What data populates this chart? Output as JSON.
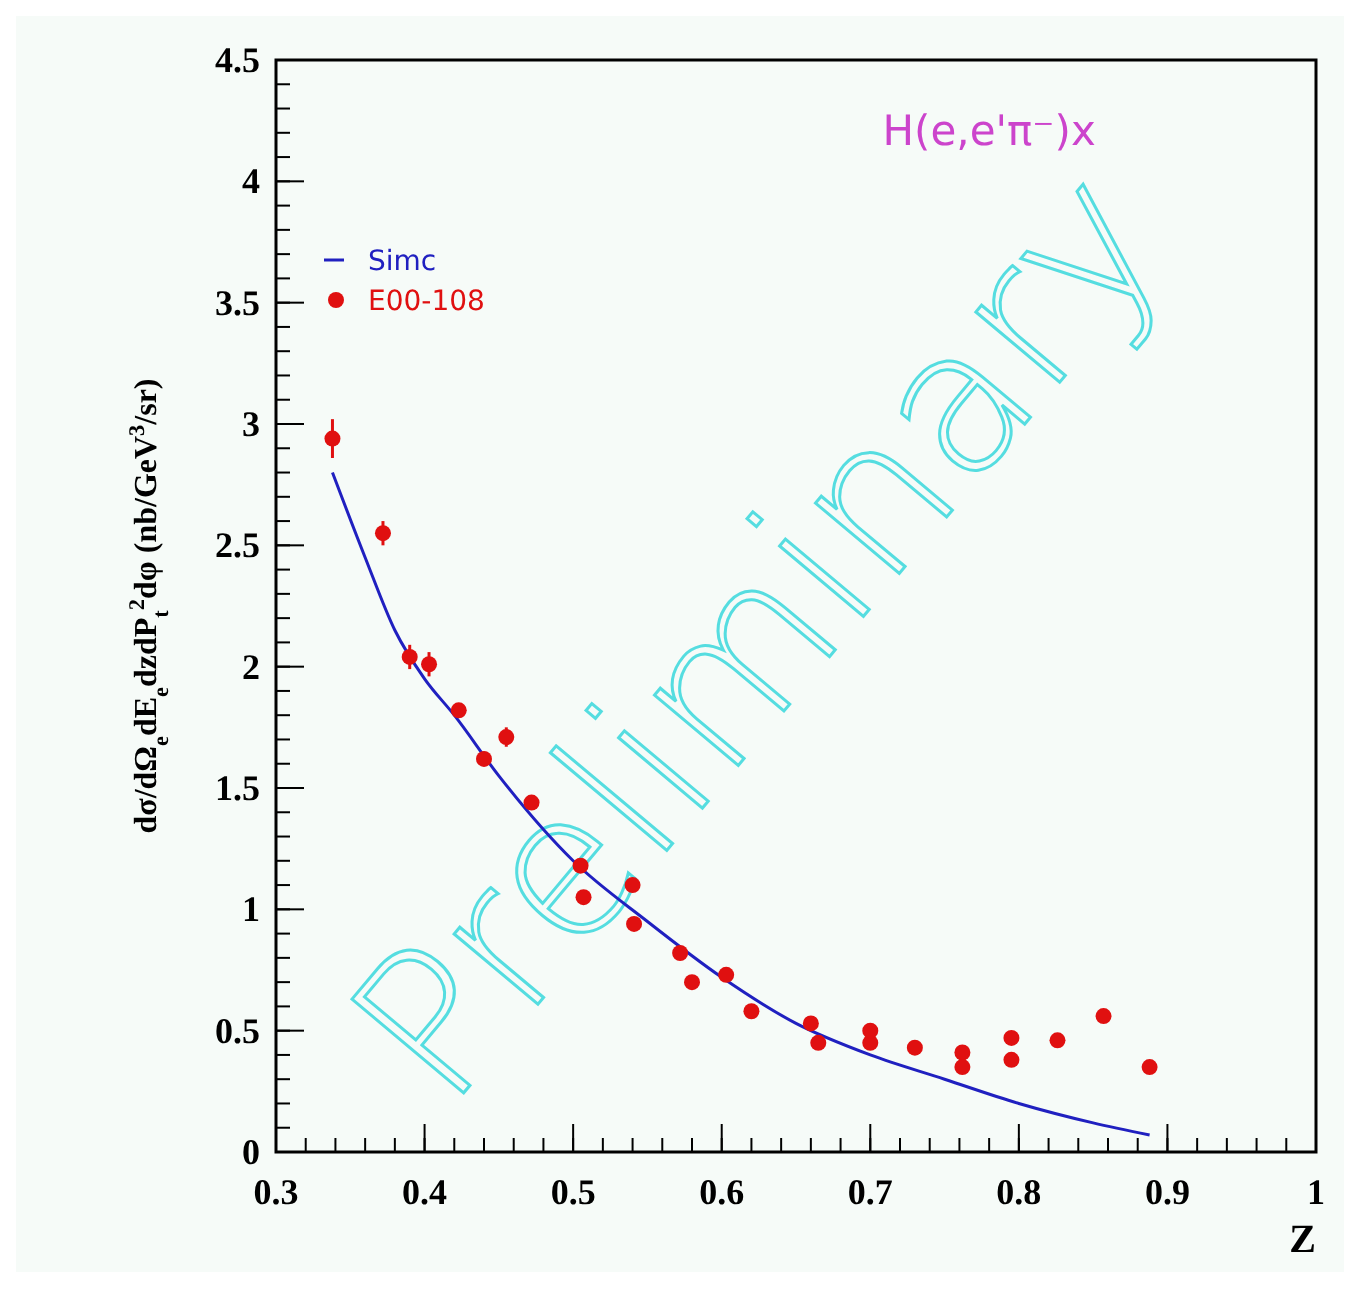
{
  "chart_data": {
    "type": "scatter",
    "xlabel": "Z",
    "ylabel": "dσ/dΩ$_{e}$dE$_{e}$dzdP$_{t}$$^{2}$dφ  (nb/GeV$^{3}$/sr)",
    "xlim": [
      0.3,
      1
    ],
    "xticks": [
      0.3,
      0.4,
      0.5,
      0.6,
      0.7,
      0.8,
      0.9,
      1
    ],
    "ylim": [
      0,
      4.5
    ],
    "yticks": [
      0,
      0.5,
      1,
      1.5,
      2,
      2.5,
      3,
      3.5,
      4,
      4.5
    ],
    "legend": "top left",
    "grid": false,
    "annotations": [
      "H(e,e'π⁻)x",
      "Preliminary"
    ],
    "series": [
      {
        "name": "Simc",
        "type": "line",
        "color": "#2020c0",
        "marker": "none",
        "line_style": "solid",
        "x": [
          0.338,
          0.36,
          0.38,
          0.4,
          0.42,
          0.45,
          0.5,
          0.55,
          0.6,
          0.65,
          0.7,
          0.75,
          0.8,
          0.85,
          0.888
        ],
        "values": [
          2.8,
          2.45,
          2.15,
          1.95,
          1.8,
          1.55,
          1.2,
          0.95,
          0.72,
          0.53,
          0.4,
          0.3,
          0.2,
          0.12,
          0.07
        ]
      },
      {
        "name": "E00-108",
        "color": "#e01010",
        "marker": "circle",
        "x": [
          0.338,
          0.372,
          0.39,
          0.403,
          0.423,
          0.44,
          0.455,
          0.472,
          0.505,
          0.507,
          0.54,
          0.541,
          0.572,
          0.58,
          0.603,
          0.62,
          0.66,
          0.665,
          0.7,
          0.7,
          0.73,
          0.762,
          0.762,
          0.795,
          0.795,
          0.826,
          0.857,
          0.888
        ],
        "values": [
          2.94,
          2.55,
          2.04,
          2.01,
          1.82,
          1.62,
          1.71,
          1.44,
          1.18,
          1.05,
          1.1,
          0.94,
          0.82,
          0.7,
          0.73,
          0.58,
          0.53,
          0.45,
          0.45,
          0.5,
          0.43,
          0.41,
          0.35,
          0.47,
          0.38,
          0.46,
          0.56,
          0.35
        ],
        "errors": [
          0.08,
          0.05,
          0.05,
          0.05,
          0.03,
          0.03,
          0.04,
          0.02,
          0.02,
          0.02,
          0.02,
          0.02,
          0.02,
          0.02,
          0.02,
          0.02,
          0.02,
          0.02,
          0.02,
          0.02,
          0.02,
          0.02,
          0.02,
          0.02,
          0.02,
          0.02,
          0.02,
          0.02
        ]
      }
    ]
  }
}
